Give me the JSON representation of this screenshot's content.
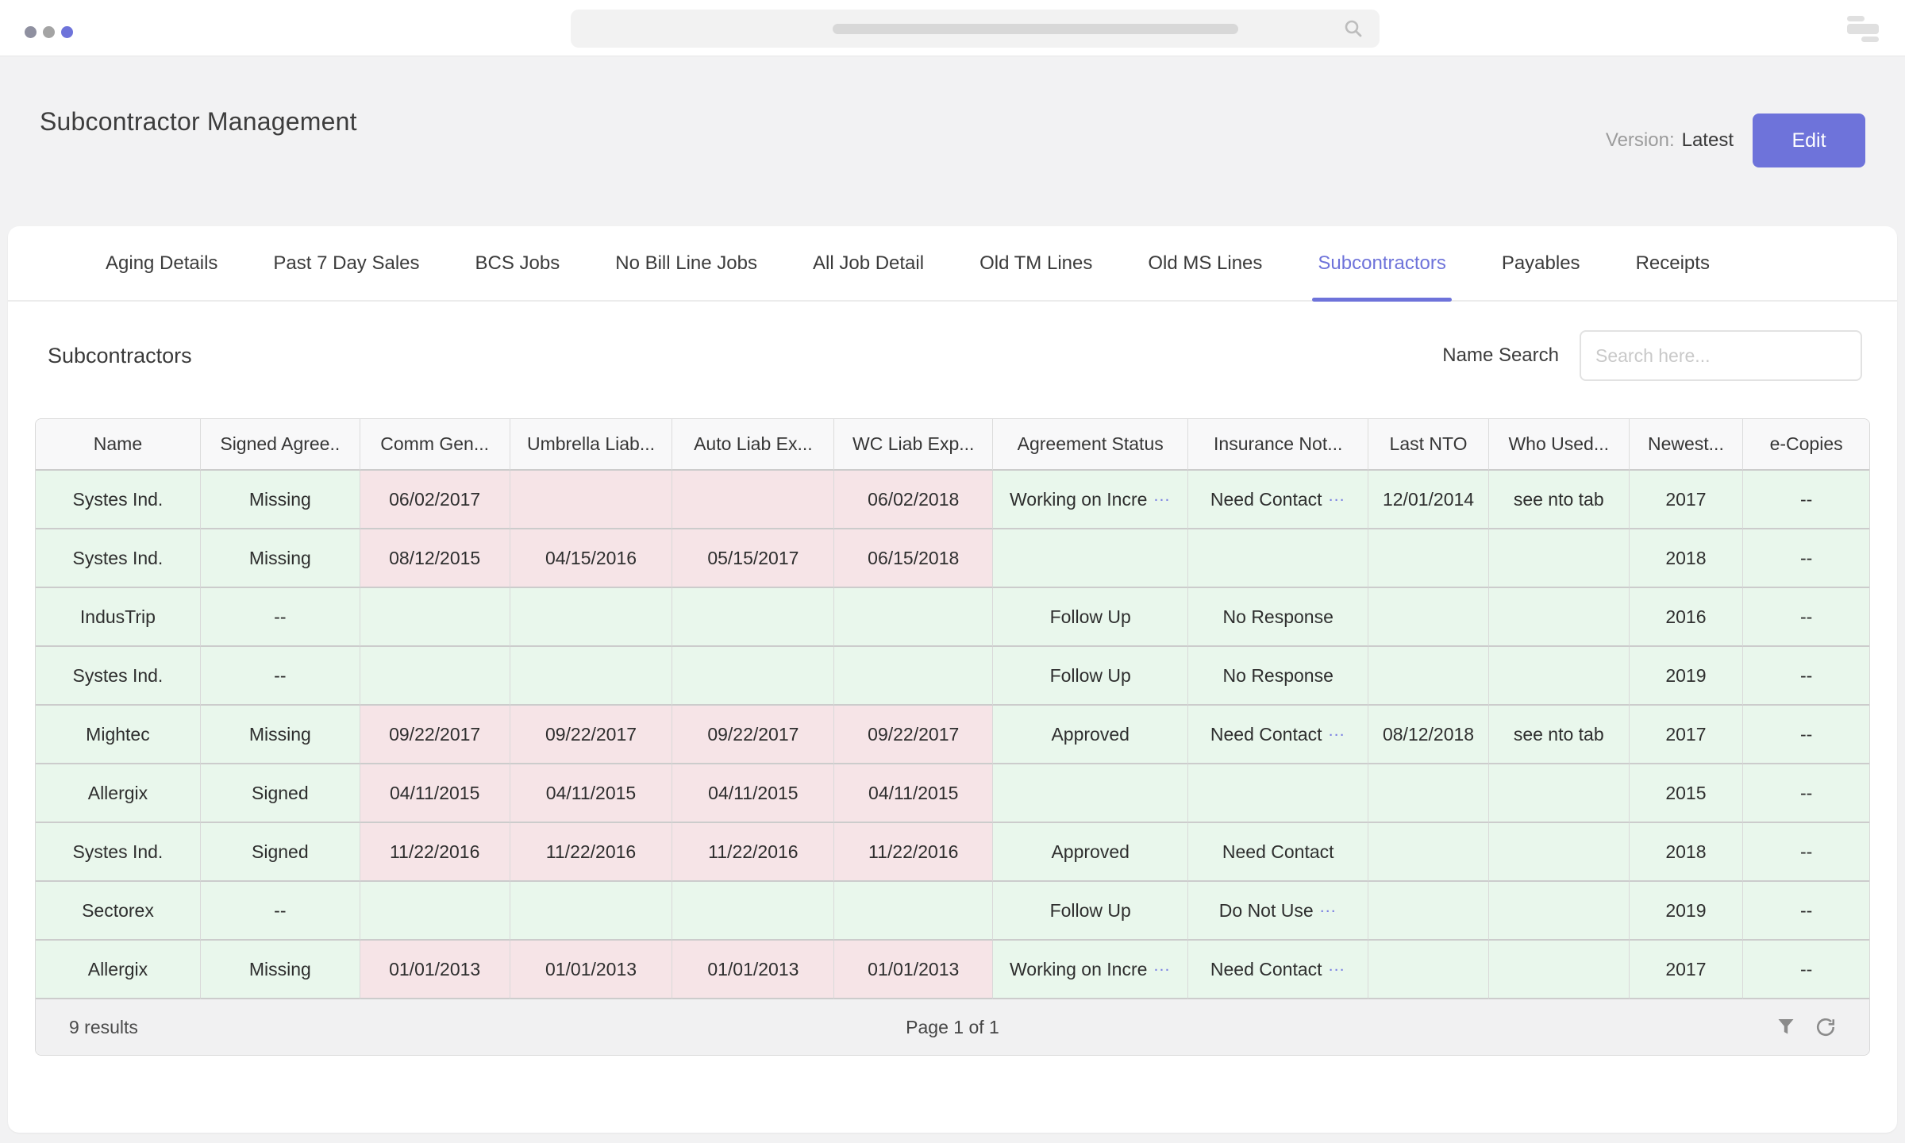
{
  "colors": {
    "accent": "#6e73da",
    "green_cell": "#e9f7ec",
    "pink_cell": "#f6e4e7"
  },
  "header": {
    "title": "Subcontractor Management",
    "version_label": "Version:",
    "version_value": "Latest",
    "edit_button": "Edit"
  },
  "tabs": {
    "items": [
      "Aging Details",
      "Past 7 Day Sales",
      "BCS Jobs",
      "No Bill Line Jobs",
      "All Job Detail",
      "Old TM Lines",
      "Old MS Lines",
      "Subcontractors",
      "Payables",
      "Receipts"
    ],
    "active": "Subcontractors"
  },
  "section": {
    "heading": "Subcontractors",
    "search_label": "Name Search",
    "search_placeholder": "Search here..."
  },
  "table": {
    "columns": [
      "Name",
      "Signed Agree..",
      "Comm Gen...",
      "Umbrella Liab...",
      "Auto Liab Ex...",
      "WC Liab Exp...",
      "Agreement Status",
      "Insurance Not...",
      "Last NTO",
      "Who Used...",
      "Newest...",
      "e-Copies"
    ],
    "rows": [
      {
        "cells": [
          {
            "t": "Systes Ind."
          },
          {
            "t": "Missing"
          },
          {
            "t": "06/02/2017",
            "bg": "p"
          },
          {
            "t": "",
            "bg": "p"
          },
          {
            "t": "",
            "bg": "p"
          },
          {
            "t": "06/02/2018",
            "bg": "p"
          },
          {
            "t": "Working on Incre",
            "ell": true
          },
          {
            "t": "Need Contact",
            "ell": true
          },
          {
            "t": "12/01/2014"
          },
          {
            "t": "see nto tab"
          },
          {
            "t": "2017"
          },
          {
            "t": "--"
          }
        ]
      },
      {
        "cells": [
          {
            "t": "Systes Ind."
          },
          {
            "t": "Missing"
          },
          {
            "t": "08/12/2015",
            "bg": "p"
          },
          {
            "t": "04/15/2016",
            "bg": "p"
          },
          {
            "t": "05/15/2017",
            "bg": "p"
          },
          {
            "t": "06/15/2018",
            "bg": "p"
          },
          {
            "t": ""
          },
          {
            "t": ""
          },
          {
            "t": ""
          },
          {
            "t": ""
          },
          {
            "t": "2018"
          },
          {
            "t": "--"
          }
        ]
      },
      {
        "cells": [
          {
            "t": "IndusTrip"
          },
          {
            "t": "--"
          },
          {
            "t": ""
          },
          {
            "t": ""
          },
          {
            "t": ""
          },
          {
            "t": ""
          },
          {
            "t": "Follow Up"
          },
          {
            "t": "No Response"
          },
          {
            "t": ""
          },
          {
            "t": ""
          },
          {
            "t": "2016"
          },
          {
            "t": "--"
          }
        ]
      },
      {
        "cells": [
          {
            "t": "Systes Ind."
          },
          {
            "t": "--"
          },
          {
            "t": ""
          },
          {
            "t": ""
          },
          {
            "t": ""
          },
          {
            "t": ""
          },
          {
            "t": "Follow Up"
          },
          {
            "t": "No Response"
          },
          {
            "t": ""
          },
          {
            "t": ""
          },
          {
            "t": "2019"
          },
          {
            "t": "--"
          }
        ]
      },
      {
        "cells": [
          {
            "t": "Mightec"
          },
          {
            "t": "Missing"
          },
          {
            "t": "09/22/2017",
            "bg": "p"
          },
          {
            "t": "09/22/2017",
            "bg": "p"
          },
          {
            "t": "09/22/2017",
            "bg": "p"
          },
          {
            "t": "09/22/2017",
            "bg": "p"
          },
          {
            "t": "Approved"
          },
          {
            "t": "Need Contact",
            "ell": true
          },
          {
            "t": "08/12/2018"
          },
          {
            "t": "see nto tab"
          },
          {
            "t": "2017"
          },
          {
            "t": "--"
          }
        ]
      },
      {
        "cells": [
          {
            "t": "Allergix"
          },
          {
            "t": "Signed"
          },
          {
            "t": "04/11/2015",
            "bg": "p"
          },
          {
            "t": "04/11/2015",
            "bg": "p"
          },
          {
            "t": "04/11/2015",
            "bg": "p"
          },
          {
            "t": "04/11/2015",
            "bg": "p"
          },
          {
            "t": ""
          },
          {
            "t": ""
          },
          {
            "t": ""
          },
          {
            "t": ""
          },
          {
            "t": "2015"
          },
          {
            "t": "--"
          }
        ]
      },
      {
        "cells": [
          {
            "t": "Systes Ind."
          },
          {
            "t": "Signed"
          },
          {
            "t": "11/22/2016",
            "bg": "p"
          },
          {
            "t": "11/22/2016",
            "bg": "p"
          },
          {
            "t": "11/22/2016",
            "bg": "p"
          },
          {
            "t": "11/22/2016",
            "bg": "p"
          },
          {
            "t": "Approved"
          },
          {
            "t": "Need Contact"
          },
          {
            "t": ""
          },
          {
            "t": ""
          },
          {
            "t": "2018"
          },
          {
            "t": "--"
          }
        ]
      },
      {
        "cells": [
          {
            "t": "Sectorex"
          },
          {
            "t": "--"
          },
          {
            "t": ""
          },
          {
            "t": ""
          },
          {
            "t": ""
          },
          {
            "t": ""
          },
          {
            "t": "Follow Up"
          },
          {
            "t": "Do Not Use",
            "ell": true
          },
          {
            "t": ""
          },
          {
            "t": ""
          },
          {
            "t": "2019"
          },
          {
            "t": "--"
          }
        ]
      },
      {
        "cells": [
          {
            "t": "Allergix"
          },
          {
            "t": "Missing"
          },
          {
            "t": "01/01/2013",
            "bg": "p"
          },
          {
            "t": "01/01/2013",
            "bg": "p"
          },
          {
            "t": "01/01/2013",
            "bg": "p"
          },
          {
            "t": "01/01/2013",
            "bg": "p"
          },
          {
            "t": "Working on Incre",
            "ell": true
          },
          {
            "t": "Need Contact",
            "ell": true
          },
          {
            "t": ""
          },
          {
            "t": ""
          },
          {
            "t": "2017"
          },
          {
            "t": "--"
          }
        ]
      }
    ]
  },
  "footer": {
    "results": "9 results",
    "page": "Page 1 of 1"
  }
}
